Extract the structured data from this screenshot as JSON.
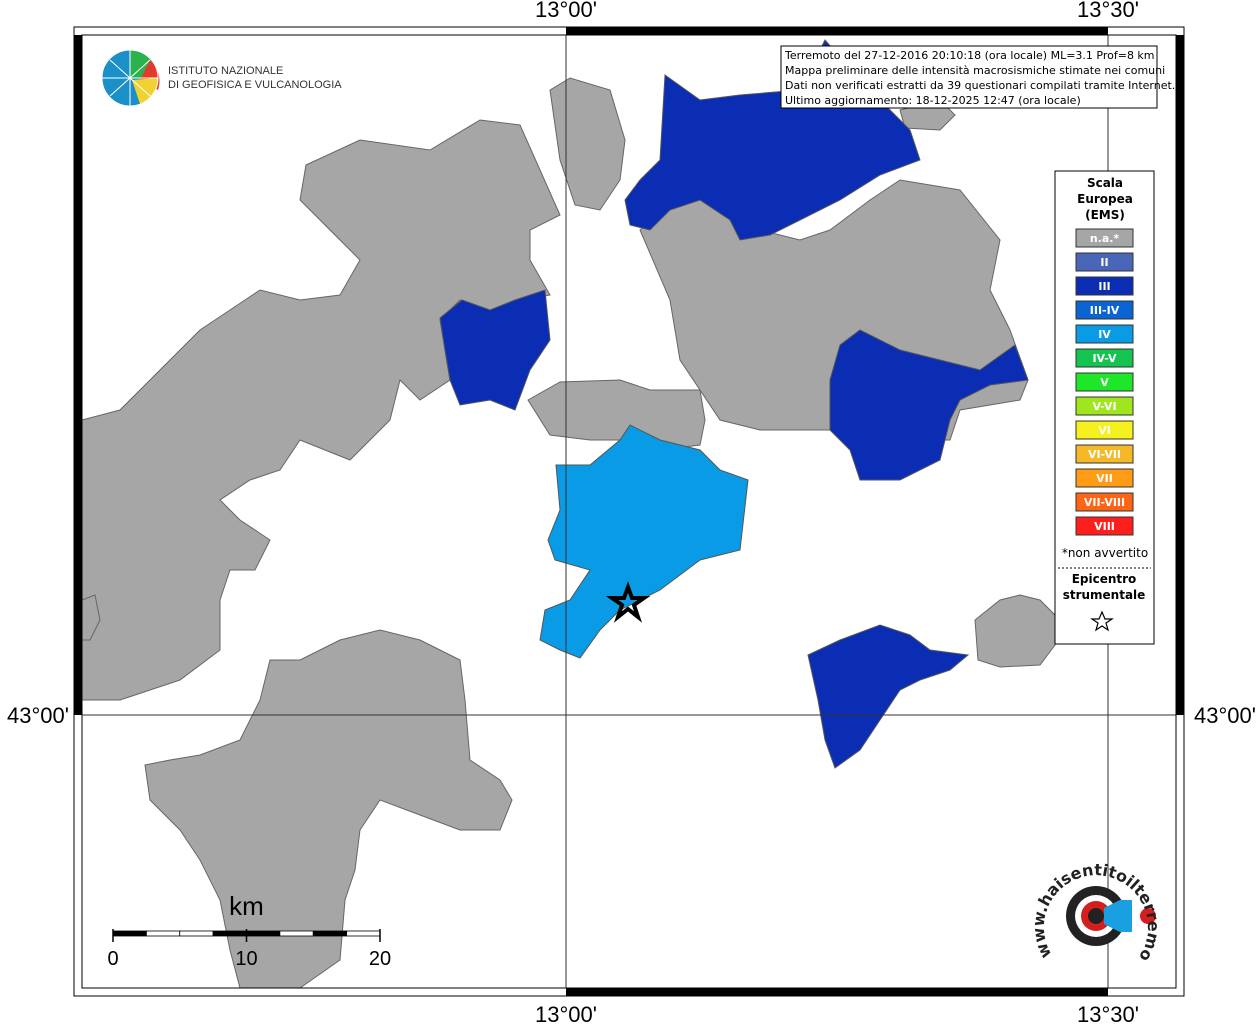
{
  "map": {
    "lon_labels": [
      "13°00'",
      "13°30'"
    ],
    "lat_labels": [
      "43°00'"
    ]
  },
  "info": {
    "lines": [
      "Terremoto del 27-12-2016 20:10:18 (ora locale) ML=3.1 Prof=8 km",
      "Mappa preliminare delle intensità macrosismiche stimate nei comuni",
      "Dati non verificati estratti da 39 questionari compilati tramite Internet.",
      "Ultimo aggiornamento: 18-12-2025 12:47 (ora locale)"
    ]
  },
  "legend": {
    "title": [
      "Scala",
      "Europea",
      "(EMS)"
    ],
    "classes": [
      {
        "label": "n.a.*",
        "color": "#a6a6a6"
      },
      {
        "label": "II",
        "color": "#4a66b8"
      },
      {
        "label": "III",
        "color": "#0a2db4"
      },
      {
        "label": "III-IV",
        "color": "#0a64d2"
      },
      {
        "label": "IV",
        "color": "#0a9be6"
      },
      {
        "label": "IV-V",
        "color": "#14c350"
      },
      {
        "label": "V",
        "color": "#1ee628"
      },
      {
        "label": "V-VI",
        "color": "#a0e61e"
      },
      {
        "label": "VI",
        "color": "#f5f01e"
      },
      {
        "label": "VI-VII",
        "color": "#f5b928"
      },
      {
        "label": "VII",
        "color": "#ff9b14"
      },
      {
        "label": "VII-VIII",
        "color": "#ff6414"
      },
      {
        "label": "VIII",
        "color": "#ff1e1e"
      }
    ],
    "note": "*non avvertito",
    "epicenter": [
      "Epicentro",
      "strumentale"
    ]
  },
  "scale_bar": {
    "unit": "km",
    "ticks": [
      0,
      10,
      20
    ]
  },
  "logos": {
    "ingv": [
      "ISTITUTO NAZIONALE",
      "DI GEOFISICA E VULCANOLOGIA"
    ],
    "haisentito": "www.haisentitoilterremoto.it"
  }
}
